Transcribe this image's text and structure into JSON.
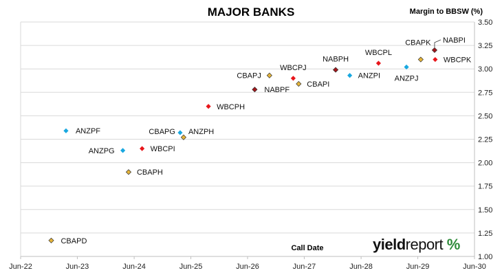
{
  "chart_data": {
    "type": "scatter",
    "title": "MAJOR BANKS",
    "xlabel": "Call Date",
    "ylabel": "Margin to BBSW (%)",
    "x_ticks": [
      "Jun-22",
      "Jun-23",
      "Jun-24",
      "Jun-25",
      "Jun-26",
      "Jun-27",
      "Jun-28",
      "Jun-29",
      "Jun-30"
    ],
    "xlim": [
      "Jun-22",
      "Jun-30"
    ],
    "y_ticks": [
      "1.00",
      "1.25",
      "1.50",
      "1.75",
      "2.00",
      "2.25",
      "2.50",
      "2.75",
      "3.00",
      "3.25",
      "3.50"
    ],
    "ylim": [
      1.0,
      3.5
    ],
    "y_axis_side": "right",
    "grid": "horizontal",
    "colors": {
      "ANZ": "#19a8e0",
      "CBA": "#e5b43a",
      "NAB": "#a3161a",
      "WBC": "#e8161b",
      "gridline": "#d9d9d9",
      "axis": "#bfbfbf"
    },
    "points": [
      {
        "label": "CBAPD",
        "issuer": "CBA",
        "x": "2022-12-15",
        "y": 1.17
      },
      {
        "label": "ANZPF",
        "issuer": "ANZ",
        "x": "2023-03-20",
        "y": 2.34
      },
      {
        "label": "ANZPG",
        "issuer": "ANZ",
        "x": "2024-03-20",
        "y": 2.13
      },
      {
        "label": "CBAPH",
        "issuer": "CBA",
        "x": "2024-04-26",
        "y": 1.9
      },
      {
        "label": "WBCPI",
        "issuer": "WBC",
        "x": "2024-07-22",
        "y": 2.15
      },
      {
        "label": "CBAPG",
        "issuer": "CBA",
        "x": "2025-04-15",
        "y": 2.27
      },
      {
        "label": "ANZPH",
        "issuer": "ANZ",
        "x": "2025-03-24",
        "y": 2.32
      },
      {
        "label": "WBCPH",
        "issuer": "WBC",
        "x": "2025-09-22",
        "y": 2.6
      },
      {
        "label": "NABPF",
        "issuer": "NAB",
        "x": "2026-07-17",
        "y": 2.78
      },
      {
        "label": "CBAPJ",
        "issuer": "CBA",
        "x": "2026-10-20",
        "y": 2.93
      },
      {
        "label": "WBCPJ",
        "issuer": "WBC",
        "x": "2027-03-22",
        "y": 2.9
      },
      {
        "label": "CBAPI",
        "issuer": "CBA",
        "x": "2027-04-26",
        "y": 2.84
      },
      {
        "label": "NABPH",
        "issuer": "NAB",
        "x": "2027-12-20",
        "y": 2.99
      },
      {
        "label": "ANZPI",
        "issuer": "ANZ",
        "x": "2028-03-20",
        "y": 2.93
      },
      {
        "label": "WBCPL",
        "issuer": "WBC",
        "x": "2028-09-21",
        "y": 3.06
      },
      {
        "label": "ANZPJ",
        "issuer": "ANZ",
        "x": "2029-03-20",
        "y": 3.02
      },
      {
        "label": "CBAPK",
        "issuer": "CBA",
        "x": "2029-06-20",
        "y": 3.1
      },
      {
        "label": "NABPI",
        "issuer": "NAB",
        "x": "2029-09-17",
        "y": 3.2
      },
      {
        "label": "WBCPK",
        "issuer": "WBC",
        "x": "2029-09-21",
        "y": 3.1
      }
    ]
  },
  "branding": {
    "logo_part_1": "yield",
    "logo_part_2": "report",
    "logo_mark": "%"
  }
}
